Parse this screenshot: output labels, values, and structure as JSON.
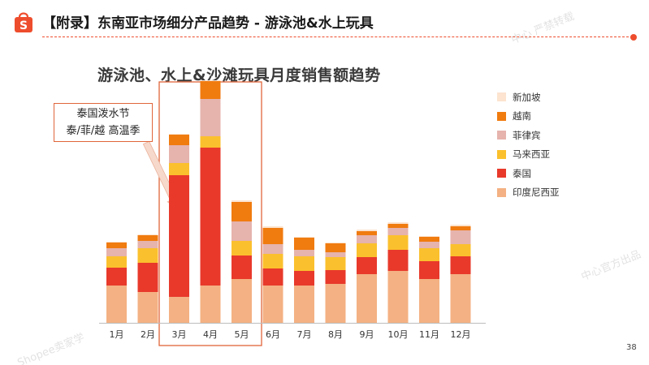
{
  "header": {
    "title": "【附录】东南亚市场细分产品趋势 - 游泳池&水上玩具",
    "logo_icon": "shopee-bag-icon",
    "accent_color": "#ee4d2d"
  },
  "watermarks": [
    "中心 严禁转载",
    "中心官方出品",
    "Shopee卖家学"
  ],
  "page_number": "38",
  "chart_data": {
    "type": "bar",
    "stacked": true,
    "title": "游泳池、水上&沙滩玩具月度销售额趋势",
    "categories": [
      "1月",
      "2月",
      "3月",
      "4月",
      "5月",
      "6月",
      "7月",
      "8月",
      "9月",
      "10月",
      "11月",
      "12月"
    ],
    "ylim": [
      0,
      290
    ],
    "grid": false,
    "legend_position": "right",
    "series": [
      {
        "name": "印度尼西亚",
        "color": "#f4b183",
        "values": [
          46,
          38,
          32,
          46,
          54,
          46,
          46,
          48,
          60,
          64,
          54,
          60
        ]
      },
      {
        "name": "泰国",
        "color": "#e8392b",
        "values": [
          22,
          36,
          150,
          170,
          29,
          21,
          18,
          17,
          21,
          26,
          22,
          22
        ]
      },
      {
        "name": "马来西亚",
        "color": "#fbc02d",
        "values": [
          14,
          18,
          15,
          14,
          18,
          18,
          18,
          16,
          17,
          18,
          16,
          15
        ]
      },
      {
        "name": "菲律宾",
        "color": "#e6b3ad",
        "values": [
          10,
          9,
          22,
          46,
          24,
          12,
          8,
          6,
          10,
          9,
          8,
          17
        ]
      },
      {
        "name": "越南",
        "color": "#f07b0f",
        "values": [
          7,
          7,
          13,
          22,
          24,
          20,
          15,
          11,
          5,
          5,
          6,
          5
        ]
      },
      {
        "name": "新加坡",
        "color": "#fce4d0",
        "values": [
          1,
          1,
          1,
          1,
          2,
          2,
          1,
          1,
          2,
          2,
          1,
          2
        ]
      }
    ],
    "legend_order": [
      "新加坡",
      "越南",
      "菲律宾",
      "马来西亚",
      "泰国",
      "印度尼西亚"
    ],
    "annotation": {
      "line1": "泰国泼水节",
      "line2": "泰/菲/越 高温季",
      "highlight": [
        "3月",
        "4月",
        "5月"
      ]
    }
  }
}
